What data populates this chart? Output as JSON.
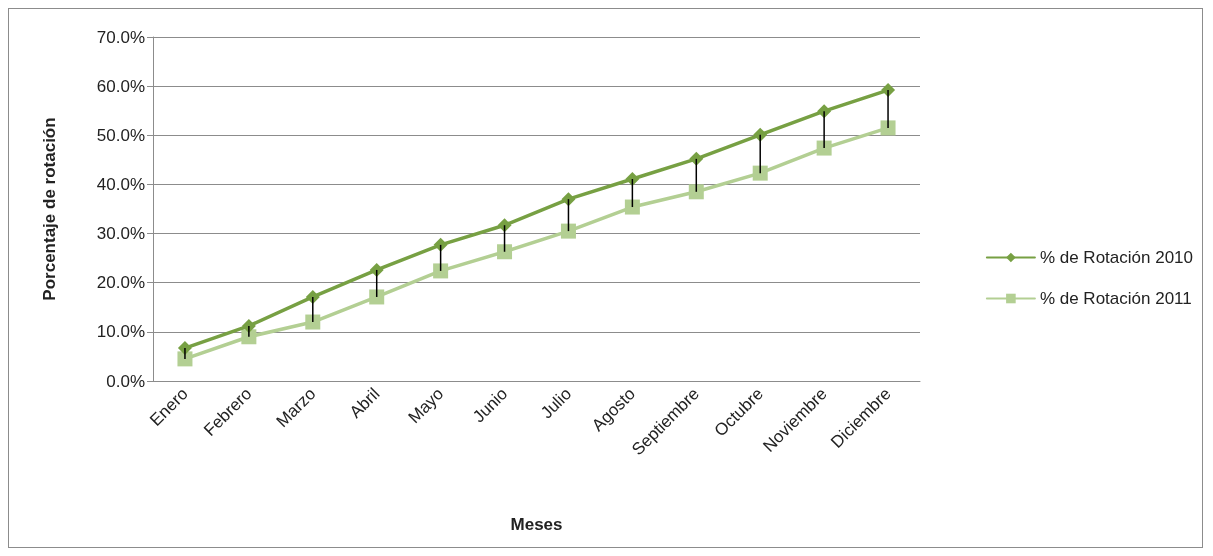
{
  "chart_data": {
    "type": "line",
    "xlabel": "Meses",
    "ylabel": "Porcentaje de rotación",
    "categories": [
      "Enero",
      "Febrero",
      "Marzo",
      "Abril",
      "Mayo",
      "Junio",
      "Julio",
      "Agosto",
      "Septiembre",
      "Octubre",
      "Noviembre",
      "Diciembre"
    ],
    "series": [
      {
        "name": "% de Rotación 2010",
        "color": "#77a043",
        "marker": "diamond",
        "values": [
          6.7,
          11.2,
          17.1,
          22.6,
          27.7,
          31.7,
          37.0,
          41.1,
          45.2,
          50.1,
          54.9,
          59.2
        ],
        "errors": [
          [
            4.5,
            6.7
          ],
          [
            9.0,
            11.2
          ],
          [
            12.0,
            17.1
          ],
          [
            17.1,
            22.6
          ],
          [
            22.4,
            27.7
          ],
          [
            26.3,
            31.7
          ],
          [
            30.5,
            37.0
          ],
          [
            35.4,
            41.1
          ],
          [
            38.5,
            45.2
          ],
          [
            42.3,
            50.1
          ],
          [
            47.4,
            54.9
          ],
          [
            51.5,
            59.2
          ]
        ]
      },
      {
        "name": "% de Rotación 2011",
        "color": "#b3cf93",
        "marker": "square",
        "values": [
          4.5,
          9.0,
          12.0,
          17.1,
          22.4,
          26.3,
          30.5,
          35.4,
          38.5,
          42.3,
          47.4,
          51.5
        ]
      }
    ],
    "ylim": [
      0,
      70
    ],
    "yticks": [
      {
        "value": 0,
        "label": "0.0%"
      },
      {
        "value": 10,
        "label": "10.0%"
      },
      {
        "value": 20,
        "label": "20.0%"
      },
      {
        "value": 30,
        "label": "30.0%"
      },
      {
        "value": 40,
        "label": "40.0%"
      },
      {
        "value": 50,
        "label": "50.0%"
      },
      {
        "value": 60,
        "label": "60.0%"
      },
      {
        "value": 70,
        "label": "70.0%"
      }
    ],
    "grid": "y",
    "legend": "right",
    "line_style": "solid"
  }
}
